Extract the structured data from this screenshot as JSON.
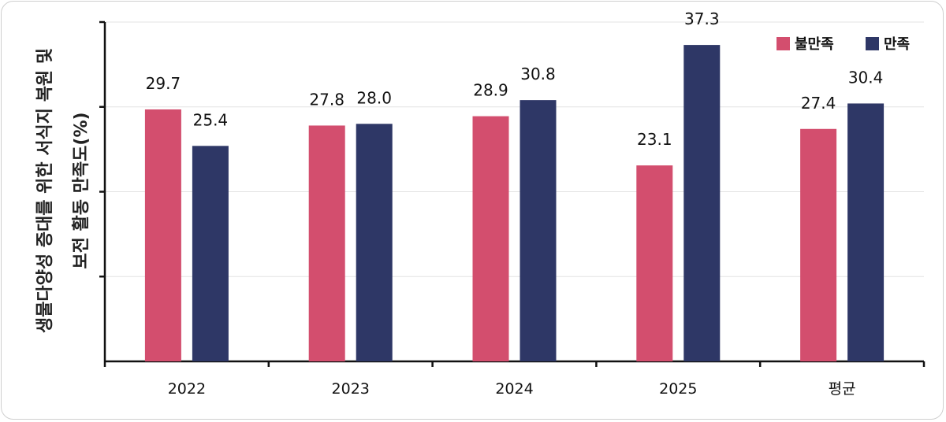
{
  "chart_data": {
    "type": "bar",
    "title": "",
    "ylabel_lines": [
      "생물다양성 증대를 위한 서식지 복원 및",
      "보전 활동 만족도(%)"
    ],
    "xlabel": "",
    "categories": [
      "2022",
      "2023",
      "2024",
      "2025",
      "평균"
    ],
    "series": [
      {
        "name": "불만족",
        "color": "#d34e6e",
        "values": [
          29.7,
          27.8,
          28.9,
          23.1,
          27.4
        ]
      },
      {
        "name": "만족",
        "color": "#2e3766",
        "values": [
          25.4,
          28.0,
          30.8,
          37.3,
          30.4
        ]
      }
    ],
    "value_labels": [
      [
        "29.7",
        "27.8",
        "28.9",
        "23.1",
        "27.4"
      ],
      [
        "25.4",
        "28.0",
        "30.8",
        "37.3",
        "30.4"
      ]
    ],
    "ylim": [
      0,
      40
    ],
    "y_gridlines": [
      10,
      20,
      30,
      40
    ],
    "grid": true,
    "legend": "top-right"
  }
}
